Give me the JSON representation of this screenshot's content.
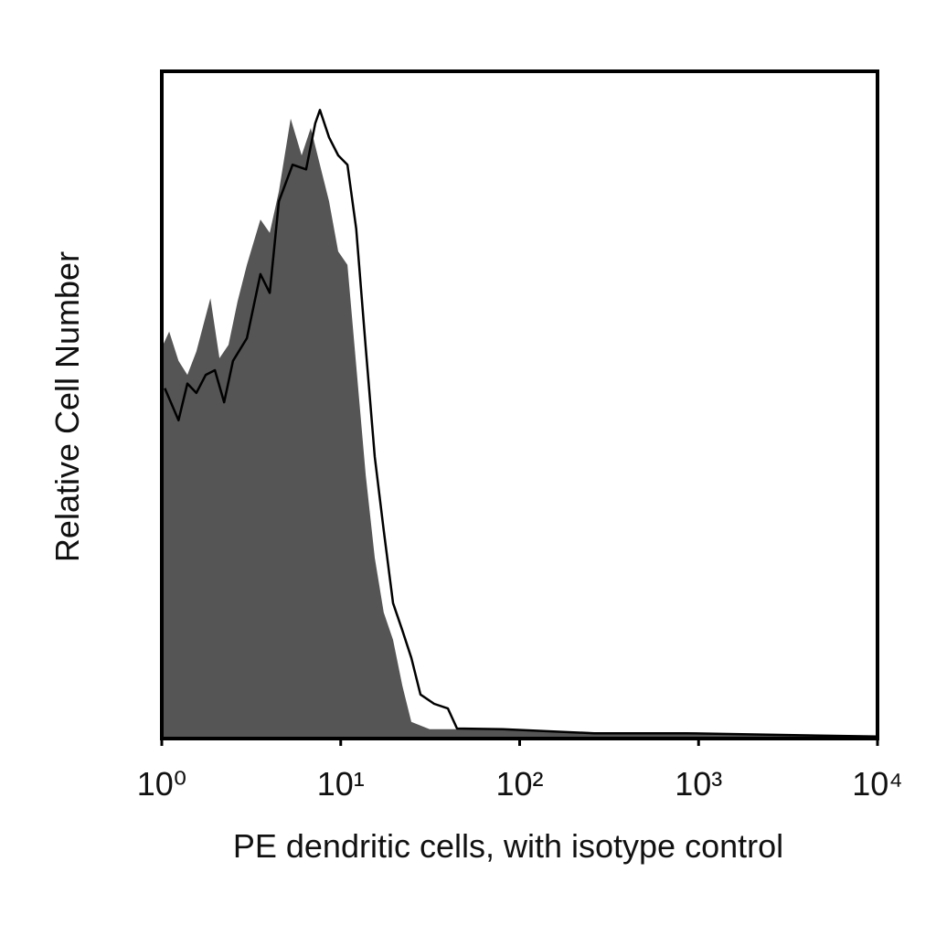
{
  "chart_data": {
    "type": "histogram-overlay",
    "x_label": "PE dendritic cells, with isotype control",
    "y_label": "Relative Cell Number",
    "xscale": "log",
    "xlim": [
      1,
      10000
    ],
    "xticks": [
      {
        "value": 1,
        "label": "10⁰"
      },
      {
        "value": 10,
        "label": "10¹"
      },
      {
        "value": 100,
        "label": "10²"
      },
      {
        "value": 1000,
        "label": "10³"
      },
      {
        "value": 10000,
        "label": "10⁴"
      }
    ],
    "ylim": [
      0,
      100
    ],
    "series": [
      {
        "style": "filled",
        "color": "#555555",
        "x": [
          1,
          1.1,
          1.24,
          1.39,
          1.56,
          1.87,
          2.1,
          2.36,
          2.65,
          2.99,
          3.56,
          4.01,
          4.51,
          5.25,
          6.05,
          6.8,
          7.65,
          8.61,
          9.68,
          10.9,
          12.2,
          13.8,
          15.5,
          17.4,
          19.6,
          22.1,
          24.8,
          31.4,
          44.7,
          80.5,
          145,
          470,
          1524,
          10000
        ],
        "values": [
          58.6,
          61,
          56.6,
          54.5,
          58,
          66,
          57,
          59,
          65.5,
          71,
          77.8,
          75.8,
          82,
          92.9,
          87.4,
          91.5,
          86,
          80.5,
          73,
          71,
          55.9,
          39.5,
          27.1,
          18.9,
          14.8,
          7.9,
          2.5,
          1.4,
          1.4,
          1.5,
          1.1,
          0.8,
          0.7,
          0.4
        ]
      },
      {
        "style": "line",
        "color": "#000000",
        "x": [
          1.04,
          1.24,
          1.39,
          1.56,
          1.76,
          1.98,
          2.23,
          2.5,
          2.99,
          3.56,
          4.01,
          4.51,
          5.38,
          6.41,
          7.21,
          7.65,
          8.61,
          9.68,
          10.9,
          12.2,
          13.8,
          15.5,
          17.4,
          19.6,
          22.1,
          24.8,
          27.9,
          33.3,
          39.7,
          44.7,
          80.5,
          261,
          846,
          10000
        ],
        "values": [
          52.5,
          47.7,
          53.2,
          51.8,
          54.5,
          55.2,
          50.4,
          56.6,
          60,
          69.6,
          66.8,
          80.5,
          86,
          85.3,
          92.2,
          94.2,
          90.1,
          87.4,
          86,
          76.4,
          58.6,
          42.2,
          31.2,
          20.3,
          16.2,
          12.1,
          6.6,
          5.2,
          4.5,
          1.5,
          1.4,
          0.8,
          0.8,
          0.3
        ]
      }
    ]
  }
}
